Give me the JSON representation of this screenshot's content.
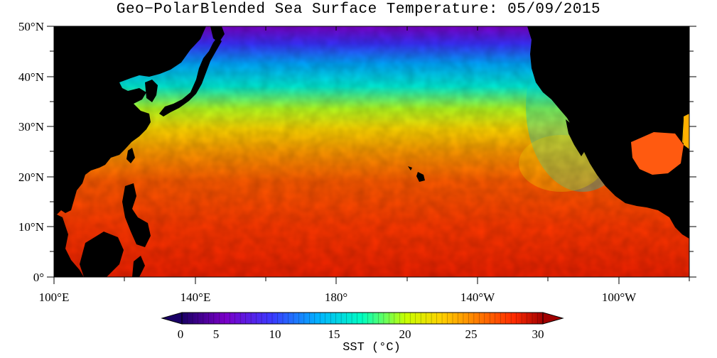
{
  "title": "Geo−PolarBlended Sea Surface Temperature: 05/09/2015",
  "map": {
    "lat_labels": [
      "50°N",
      "40°N",
      "30°N",
      "20°N",
      "10°N",
      "0°"
    ],
    "lon_labels": [
      "100°E",
      "140°E",
      "180°",
      "140°W",
      "100°W"
    ],
    "lat_range": [
      0,
      50
    ],
    "lon_range_east_degrees": [
      100,
      280
    ],
    "land_color": "#000000"
  },
  "colorbar": {
    "title": "SST (°C)",
    "ticks": [
      "0",
      "5",
      "10",
      "15",
      "20",
      "25",
      "30"
    ],
    "range": [
      -2,
      32
    ],
    "colors": [
      "#1a0066",
      "#7a00c8",
      "#3a3aff",
      "#00b4ff",
      "#00ffc0",
      "#c8ff00",
      "#ffd000",
      "#ff7a00",
      "#ff2a00",
      "#a00000"
    ]
  }
}
